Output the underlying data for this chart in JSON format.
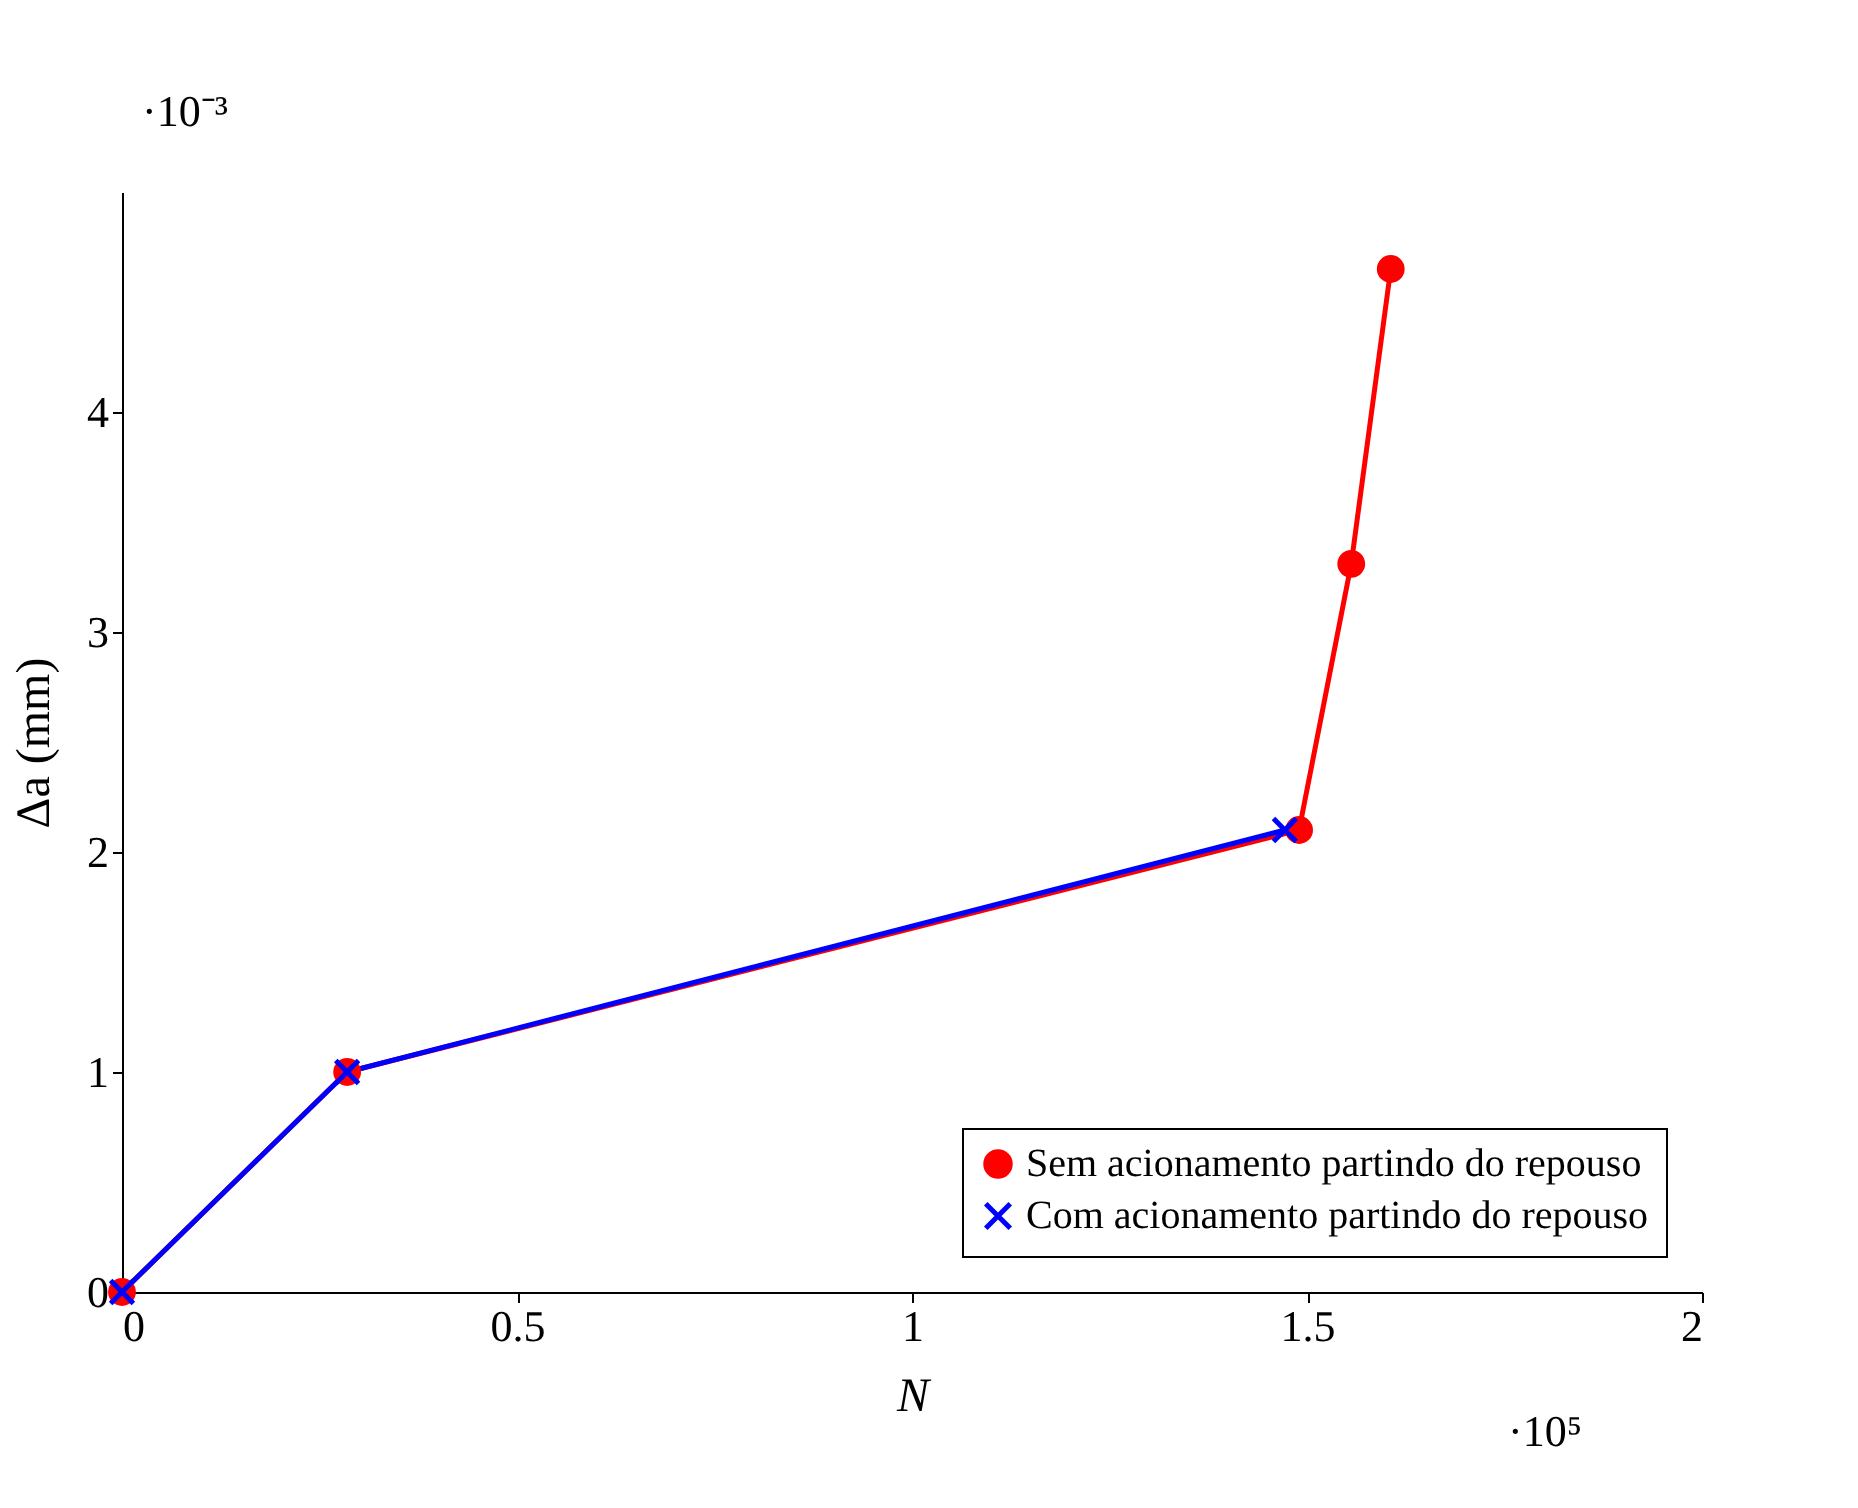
{
  "chart_data": {
    "type": "line",
    "xlabel": "N",
    "ylabel": "Δa (mm)",
    "xlim": [
      0,
      2
    ],
    "xticks": [
      0,
      0.5,
      1,
      1.5,
      2
    ],
    "ylim": [
      0,
      5
    ],
    "yticks": [
      0,
      1,
      2,
      3,
      4
    ],
    "grid": false,
    "legend": "bottom right",
    "annotations": [
      "·10⁻³",
      "·10⁵"
    ],
    "series": [
      {
        "name": "Sem acionamento partindo do repouso",
        "color": "#ff0000",
        "marker": "circle",
        "x": [
          0,
          0.285,
          1.49,
          1.556,
          1.606
        ],
        "values": [
          0,
          1.0,
          2.1,
          3.31,
          4.65
        ]
      },
      {
        "name": "Com acionamento partindo do repouso",
        "color": "#0000ff",
        "marker": "cross",
        "x": [
          0,
          0.285,
          1.472
        ],
        "values": [
          0,
          1.0,
          2.1
        ]
      }
    ]
  }
}
